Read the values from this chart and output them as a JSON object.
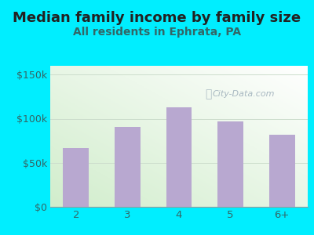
{
  "title": "Median family income by family size",
  "subtitle": "All residents in Ephrata, PA",
  "categories": [
    "2",
    "3",
    "4",
    "5",
    "6+"
  ],
  "values": [
    67000,
    91000,
    113000,
    97000,
    82000
  ],
  "bar_color": "#b8a8d0",
  "title_fontsize": 13,
  "subtitle_fontsize": 10,
  "ylim": [
    0,
    160000
  ],
  "yticks": [
    0,
    50000,
    100000,
    150000
  ],
  "ytick_labels": [
    "$0",
    "$50k",
    "$100k",
    "$150k"
  ],
  "background_outer": "#00eeff",
  "watermark": "City-Data.com",
  "title_color": "#222222",
  "subtitle_color": "#336666",
  "tick_color": "#336666",
  "grid_color": "#ccddcc"
}
